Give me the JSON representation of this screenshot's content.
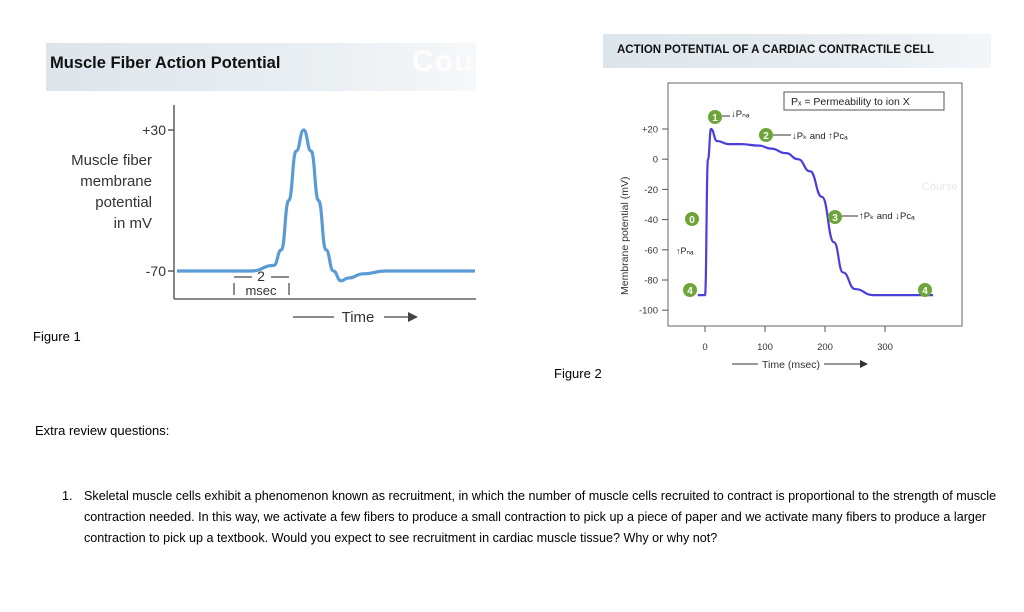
{
  "figure1": {
    "title": "Muscle Fiber Action Potential",
    "watermark": "Cou",
    "ylabel_lines": [
      "Muscle fiber",
      "membrane",
      "potential",
      "in mV"
    ],
    "tick_top": "+30",
    "tick_bottom": "-70",
    "scale_value": "2",
    "scale_unit": "msec",
    "xlabel": "Time",
    "caption": "Figure 1"
  },
  "figure2": {
    "title": "ACTION POTENTIAL OF A CARDIAC CONTRACTILE CELL",
    "caption": "Figure 2",
    "legend": "Pₓ = Permeability to ion X",
    "watermark": "Course"
  },
  "chart_data": [
    {
      "type": "line",
      "title": "Muscle Fiber Action Potential",
      "xlabel": "Time",
      "ylabel": "Muscle fiber membrane potential in mV",
      "yticks": [
        "+30",
        "-70"
      ],
      "series": [
        {
          "x": [
            0,
            10,
            13,
            14,
            15,
            16,
            17,
            18,
            19,
            20,
            21,
            22,
            23,
            25,
            28,
            40
          ],
          "y": [
            -70,
            -70,
            -66,
            -55,
            -20,
            15,
            30,
            15,
            -20,
            -55,
            -70,
            -77,
            -75,
            -72,
            -70,
            -70
          ]
        }
      ],
      "color": "#5b9bd5",
      "scale_bar": "2 msec"
    },
    {
      "type": "line",
      "title": "ACTION POTENTIAL OF A CARDIAC CONTRACTILE CELL",
      "xlabel": "Time (msec)",
      "ylabel": "Membrane potential (mV)",
      "xticks": [
        0,
        100,
        200,
        300
      ],
      "yticks": [
        "+20",
        "0",
        "-20",
        "-40",
        "-60",
        "-80",
        "-100"
      ],
      "xlim": [
        -35,
        390
      ],
      "ylim": [
        -105,
        28
      ],
      "series": [
        {
          "x": [
            -12,
            0,
            5,
            10,
            20,
            40,
            60,
            90,
            110,
            135,
            155,
            175,
            195,
            215,
            230,
            250,
            280,
            320,
            380
          ],
          "y": [
            -90,
            -90,
            0,
            20,
            12,
            10,
            10,
            9,
            7,
            4,
            0,
            -8,
            -25,
            -55,
            -75,
            -86,
            -90,
            -90,
            -90
          ]
        }
      ],
      "color": "#4b3fd9",
      "phases": [
        "0",
        "1",
        "2",
        "3",
        "4",
        "4"
      ],
      "annotations": [
        "↓Pₙₐ",
        "↓Pₖ and ↑Pᴄₐ",
        "↑Pₖ and ↓Pᴄₐ",
        "↑Pₙₐ"
      ]
    }
  ],
  "review": {
    "heading": "Extra review questions:",
    "number": "1.",
    "question": "Skeletal muscle cells exhibit a phenomenon known as recruitment, in which the number of muscle cells recruited to contract is proportional to the strength of muscle contraction needed. In this way, we activate a few fibers to produce a small contraction to pick up a piece of paper and we activate many fibers to produce a larger contraction to pick up a textbook. Would you expect to see recruitment in cardiac muscle tissue? Why or why not?"
  }
}
